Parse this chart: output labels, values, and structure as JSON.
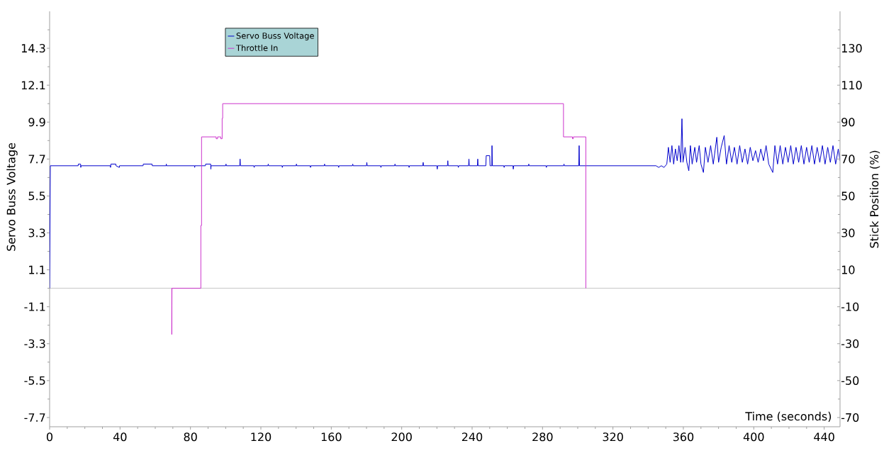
{
  "chart_data": {
    "type": "line",
    "xlabel": "Time (seconds)",
    "ylabel": "Servo Buss Voltage",
    "y2label": "Stick Position (%)",
    "xlim": [
      0,
      449
    ],
    "xticks": [
      0,
      40,
      80,
      120,
      160,
      200,
      240,
      280,
      320,
      360,
      400,
      440
    ],
    "ylim": [
      -8.25,
      16.5
    ],
    "yticks": [
      -7.7,
      -5.5,
      -3.3,
      -1.1,
      1.1,
      3.3,
      5.5,
      7.7,
      9.9,
      12.1,
      14.3
    ],
    "y2lim": [
      -75,
      150
    ],
    "y2ticks": [
      -70,
      -50,
      -30,
      -10,
      10,
      30,
      50,
      70,
      90,
      110,
      130
    ],
    "legend": "top left",
    "ref_lines": [
      {
        "axis": "y",
        "value": 0,
        "color": "#c0c0c0"
      }
    ],
    "series": [
      {
        "name": "Servo Buss Voltage",
        "color": "#0000cc",
        "x": [
          0,
          0.4,
          16.2,
          16.3,
          17.6,
          17.7,
          17.8,
          34.5,
          34.6,
          34.8,
          37.6,
          37.7,
          39.6,
          39.7,
          53.1,
          53.2,
          58.2,
          58.3,
          66.2,
          66.3,
          66.4,
          82.3,
          82.4,
          82.5,
          88.5,
          88.6,
          91.5,
          91.6,
          91.7,
          100,
          100.2,
          100.4,
          108,
          108.2,
          108.4,
          116,
          116.2,
          116.4,
          124,
          124.2,
          124.4,
          132,
          132.2,
          132.4,
          140,
          140.2,
          140.4,
          148,
          148.2,
          148.4,
          156,
          156.2,
          156.4,
          164,
          164.2,
          164.4,
          172,
          172.2,
          172.4,
          180,
          180.2,
          180.4,
          188,
          188.2,
          188.4,
          196,
          196.2,
          196.4,
          204,
          204.2,
          204.4,
          212,
          212.2,
          212.4,
          220,
          220.2,
          220.4,
          226,
          226.2,
          226.4,
          232,
          232.2,
          232.4,
          238,
          238.2,
          238.4,
          243,
          243.2,
          243.4,
          247.8,
          248,
          250,
          250.2,
          251.2,
          251.3,
          251.5,
          258,
          258.2,
          258.4,
          263.2,
          263.4,
          263.6,
          272,
          272.2,
          272.4,
          282,
          282.2,
          282.4,
          292,
          292.2,
          292.4,
          300.6,
          300.8,
          301,
          305,
          344.5,
          346,
          347.5,
          349,
          350.6,
          351.5,
          352.5,
          353.5,
          354.5,
          355.5,
          356.5,
          357.5,
          358.5,
          359.2,
          359.8,
          361,
          362,
          363.1,
          364,
          365,
          366.5,
          367.5,
          369,
          370,
          371.4,
          372.5,
          374,
          375.5,
          377,
          379,
          380,
          381.5,
          383.2,
          384.5,
          386,
          387.5,
          389,
          390.5,
          392,
          393.5,
          395,
          396.5,
          398,
          399.5,
          401,
          402.5,
          404,
          405.5,
          407,
          408.5,
          410.8,
          412,
          413.5,
          415,
          416.5,
          418,
          419.5,
          421,
          422.5,
          424,
          425.5,
          427,
          428.5,
          430,
          431.5,
          433,
          434.5,
          436,
          437.5,
          439,
          440.5,
          442,
          443.5,
          445,
          446.5,
          448,
          449
        ],
        "values": [
          0,
          7.3,
          7.3,
          7.4,
          7.4,
          7.2,
          7.3,
          7.3,
          7.2,
          7.4,
          7.4,
          7.3,
          7.2,
          7.3,
          7.3,
          7.4,
          7.4,
          7.3,
          7.3,
          7.4,
          7.3,
          7.3,
          7.2,
          7.3,
          7.3,
          7.4,
          7.4,
          7.1,
          7.3,
          7.3,
          7.4,
          7.3,
          7.3,
          7.7,
          7.3,
          7.3,
          7.2,
          7.3,
          7.3,
          7.4,
          7.3,
          7.3,
          7.2,
          7.3,
          7.3,
          7.4,
          7.3,
          7.3,
          7.2,
          7.3,
          7.3,
          7.4,
          7.3,
          7.3,
          7.2,
          7.3,
          7.3,
          7.4,
          7.3,
          7.3,
          7.5,
          7.3,
          7.3,
          7.2,
          7.3,
          7.3,
          7.4,
          7.3,
          7.3,
          7.2,
          7.3,
          7.3,
          7.5,
          7.3,
          7.3,
          7.1,
          7.3,
          7.3,
          7.6,
          7.3,
          7.3,
          7.2,
          7.3,
          7.3,
          7.7,
          7.3,
          7.3,
          7.7,
          7.3,
          7.3,
          7.9,
          7.9,
          7.3,
          7.3,
          8.5,
          7.3,
          7.3,
          7.2,
          7.3,
          7.3,
          7.1,
          7.3,
          7.3,
          7.4,
          7.3,
          7.3,
          7.2,
          7.3,
          7.3,
          7.4,
          7.3,
          7.3,
          8.5,
          7.3,
          7.3,
          7.3,
          7.2,
          7.3,
          7.2,
          7.4,
          8.4,
          7.5,
          8.5,
          7.4,
          8.3,
          7.6,
          8.5,
          7.5,
          10.1,
          7.5,
          8.4,
          7.5,
          7.0,
          8.5,
          7.4,
          8.4,
          7.5,
          8.5,
          7.4,
          6.9,
          8.4,
          7.5,
          8.5,
          7.4,
          9.0,
          7.5,
          8.4,
          9.1,
          7.4,
          8.5,
          7.5,
          8.4,
          7.4,
          8.5,
          7.5,
          8.3,
          7.4,
          8.4,
          7.6,
          8.2,
          7.5,
          8.3,
          7.6,
          8.5,
          7.4,
          6.9,
          8.5,
          7.4,
          8.5,
          7.4,
          8.4,
          7.5,
          8.5,
          7.4,
          8.4,
          7.5,
          8.5,
          7.4,
          8.4,
          7.5,
          8.5,
          7.4,
          8.4,
          7.5,
          8.5,
          7.4,
          8.4,
          7.5,
          8.5,
          7.4,
          8.3,
          7.6
        ]
      },
      {
        "name": "Throttle In",
        "color": "#cc33cc",
        "axis": "y2",
        "x": [
          69.4,
          69.4,
          69.5,
          85.9,
          85.9,
          86.3,
          86.3,
          94.6,
          94.6,
          95.4,
          95.4,
          97.2,
          97.2,
          98.0,
          98.0,
          98.3,
          98.3,
          291.9,
          291.9,
          297.0,
          297.0,
          297.5,
          297.5,
          304.6,
          304.6
        ],
        "values": [
          0,
          -25,
          0,
          0,
          34,
          34,
          82,
          82,
          81,
          81,
          82,
          82,
          81,
          81,
          92,
          92,
          100,
          100,
          82,
          82,
          81,
          81,
          82,
          82,
          0
        ]
      }
    ]
  }
}
